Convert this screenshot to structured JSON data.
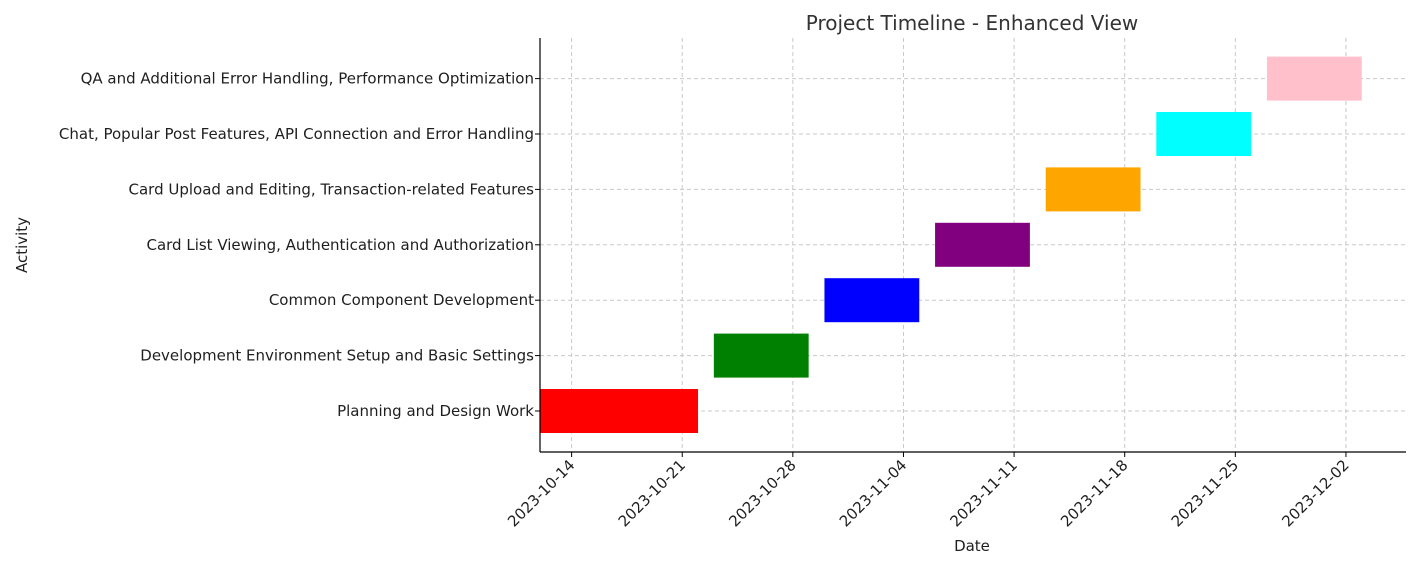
{
  "chart_data": {
    "type": "bar",
    "title": "Project Timeline - Enhanced View",
    "xlabel": "Date",
    "ylabel": "Activity",
    "x_axis": "date",
    "grid": true,
    "tasks": [
      {
        "name": "Planning and Design Work",
        "start": "2023-10-12",
        "end": "2023-10-22",
        "color": "#ff0000"
      },
      {
        "name": "Development Environment Setup and Basic Settings",
        "start": "2023-10-23",
        "end": "2023-10-29",
        "color": "#008000"
      },
      {
        "name": "Common Component Development",
        "start": "2023-10-30",
        "end": "2023-11-05",
        "color": "#0000ff"
      },
      {
        "name": "Card List Viewing, Authentication and Authorization",
        "start": "2023-11-06",
        "end": "2023-11-12",
        "color": "#800080"
      },
      {
        "name": "Card Upload and Editing, Transaction-related Features",
        "start": "2023-11-13",
        "end": "2023-11-19",
        "color": "#ffa500"
      },
      {
        "name": "Chat, Popular Post Features, API Connection and Error Handling",
        "start": "2023-11-20",
        "end": "2023-11-26",
        "color": "#00ffff"
      },
      {
        "name": "QA and Additional Error Handling, Performance Optimization",
        "start": "2023-11-27",
        "end": "2023-12-03",
        "color": "#ffc0cb"
      }
    ],
    "x_ticks": [
      "2023-10-14",
      "2023-10-21",
      "2023-10-28",
      "2023-11-04",
      "2023-11-11",
      "2023-11-18",
      "2023-11-25",
      "2023-12-02"
    ],
    "xlim": [
      "2023-10-12",
      "2023-12-06"
    ]
  }
}
